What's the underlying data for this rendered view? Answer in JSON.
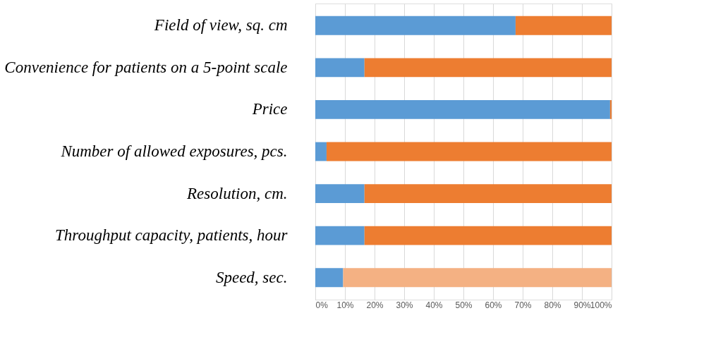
{
  "chart_data": {
    "type": "bar",
    "orientation": "horizontal",
    "stacked": true,
    "grid": "x",
    "categories": [
      "Field of view, sq. cm",
      "Convenience for patients on a 5-point scale",
      "Price",
      "Number of allowed exposures, pcs.",
      "Resolution, cm.",
      "Throughput capacity, patients, hour",
      "Speed, sec."
    ],
    "series": [
      {
        "color": "#5b9bd5",
        "values": [
          67.6,
          16.6,
          99.5,
          3.8,
          16.6,
          16.6,
          9.4
        ]
      },
      {
        "color": "#ed7d31",
        "colors": [
          null,
          null,
          null,
          null,
          null,
          null,
          "#f4b183"
        ],
        "values": [
          32.4,
          83.4,
          0.5,
          96.2,
          83.4,
          83.4,
          90.6
        ]
      }
    ],
    "xlim": [
      0,
      100
    ],
    "xticks": [
      {
        "value": 0,
        "label": "0%"
      },
      {
        "value": 10,
        "label": "10%"
      },
      {
        "value": 20,
        "label": "20%"
      },
      {
        "value": 30,
        "label": "30%"
      },
      {
        "value": 40,
        "label": "40%"
      },
      {
        "value": 50,
        "label": "50%"
      },
      {
        "value": 60,
        "label": "60%"
      },
      {
        "value": 70,
        "label": "70%"
      },
      {
        "value": 80,
        "label": "80%"
      },
      {
        "value": 90,
        "label": "90%"
      },
      {
        "value": 100,
        "label": "100%"
      }
    ]
  }
}
